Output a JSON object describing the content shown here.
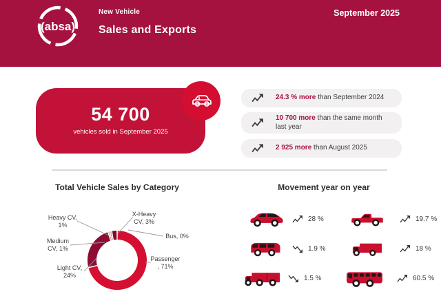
{
  "colors": {
    "header_bg": "#A51240",
    "card_bg": "#C21237",
    "badge_bg": "#D30E31",
    "pill_bg": "#F2F0F0",
    "accent_red": "#A6123F",
    "text_dark": "#3A3A3A",
    "divider": "#DADADA",
    "vehicle_red": "#C8102E"
  },
  "header": {
    "brand": "(absa)",
    "kicker": "New Vehicle",
    "title": "Sales and Exports",
    "date": "September 2025"
  },
  "hero": {
    "number": "54 700",
    "caption": "vehicles sold in September 2025"
  },
  "stats": [
    {
      "trend": "up",
      "highlight": "24.3 % more",
      "rest": "than September 2024"
    },
    {
      "trend": "up",
      "highlight": "10 700 more",
      "rest": "than the same month last year"
    },
    {
      "trend": "up",
      "highlight": "2 925 more",
      "rest": "than August 2025"
    }
  ],
  "chart_data": [
    {
      "type": "pie",
      "title": "Total Vehicle Sales by Category",
      "donut": true,
      "legend_position": "callouts",
      "slices": [
        {
          "label": "Passenger",
          "pct": 71,
          "color": "#D50F31"
        },
        {
          "label": "Light CV",
          "pct": 24,
          "color": "#8E0C34"
        },
        {
          "label": "Medium CV",
          "pct": 1,
          "color": "#DEB0A8"
        },
        {
          "label": "Heavy CV",
          "pct": 1,
          "color": "#E6998A"
        },
        {
          "label": "X-Heavy CV",
          "pct": 3,
          "color": "#7C0B2E"
        },
        {
          "label": "Bus",
          "pct": 0,
          "color": "#C8102E"
        }
      ],
      "callouts": {
        "heavy": [
          "Heavy CV,",
          "1%"
        ],
        "medium": [
          "Medium",
          "CV, 1%"
        ],
        "light": [
          "Light CV,",
          "24%"
        ],
        "xheavy": [
          "X-Heavy",
          "CV, 3%"
        ],
        "bus": [
          "Bus, 0%"
        ],
        "passenger": [
          "Passenger",
          ", 71%"
        ]
      }
    },
    {
      "type": "table",
      "title": "Movement year on year",
      "rows": [
        {
          "vehicle": "passenger car",
          "trend": "up",
          "value_pct": 28,
          "display": "28 %"
        },
        {
          "vehicle": "pickup",
          "trend": "up",
          "value_pct": 19.7,
          "display": "19.7 %"
        },
        {
          "vehicle": "minibus",
          "trend": "down",
          "value_pct": 1.9,
          "display": "1.9 %"
        },
        {
          "vehicle": "medium truck",
          "trend": "up",
          "value_pct": 18,
          "display": "18 %"
        },
        {
          "vehicle": "heavy truck",
          "trend": "down",
          "value_pct": 1.5,
          "display": "1.5 %"
        },
        {
          "vehicle": "bus",
          "trend": "up",
          "value_pct": 60.5,
          "display": "60.5 %"
        }
      ]
    }
  ]
}
